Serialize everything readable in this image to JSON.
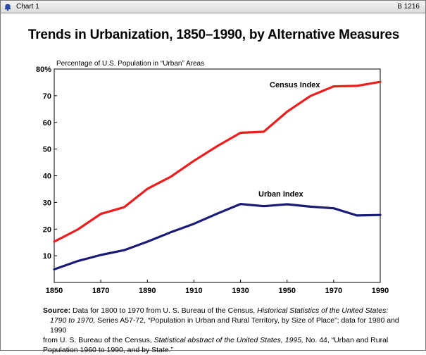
{
  "window": {
    "title": "Chart 1",
    "code": "B 1216"
  },
  "chart_data": {
    "type": "line",
    "title": "Trends in Urbanization, 1850–1990, by Alternative Measures",
    "ylabel": "Percentage of U.S. Population in “Urban” Areas",
    "xlabel": "",
    "x": [
      1850,
      1860,
      1870,
      1880,
      1890,
      1900,
      1910,
      1920,
      1930,
      1940,
      1950,
      1960,
      1970,
      1980,
      1990
    ],
    "xlim": [
      1850,
      1990
    ],
    "ylim": [
      0,
      80
    ],
    "xticks": [
      "1850",
      "1870",
      "1890",
      "1910",
      "1930",
      "1950",
      "1970",
      "1990"
    ],
    "xtick_values": [
      1850,
      1870,
      1890,
      1910,
      1930,
      1950,
      1970,
      1990
    ],
    "yticks": [
      "10",
      "20",
      "30",
      "40",
      "50",
      "60",
      "70",
      "80%"
    ],
    "ytick_values": [
      10,
      20,
      30,
      40,
      50,
      60,
      70,
      80
    ],
    "grid": false,
    "series": [
      {
        "name": "Census Index",
        "color": "#ee1c1c",
        "values": [
          15.3,
          19.8,
          25.7,
          28.2,
          35.1,
          39.6,
          45.6,
          51.1,
          56.1,
          56.5,
          64.0,
          69.9,
          73.5,
          73.7,
          75.2
        ]
      },
      {
        "name": "Urban Index",
        "color": "#1a1a78",
        "values": [
          4.9,
          8.0,
          10.3,
          12.1,
          15.3,
          18.8,
          22.0,
          25.8,
          29.4,
          28.6,
          29.3,
          28.4,
          27.8,
          25.1,
          25.3
        ]
      }
    ]
  },
  "source": {
    "label": "Source:",
    "line1_a": "Data for 1800 to 1970 from U. S. Bureau of the Census,",
    "line1_italic": "Historical Statistics of the United States:",
    "line2_italic": "1790 to 1970,",
    "line2_b": "Series A57-72, “Population in Urban and Rural Territory, by Size of Place”;  data for 1980 and 1990",
    "line3_a": "from U. S. Bureau of the Census,",
    "line3_italic": "Statistical abstract of the United States, 1995,",
    "line3_b": "No. 44, “Urban and Rural",
    "line4": "Population 1960 to 1990, and by State.”"
  }
}
